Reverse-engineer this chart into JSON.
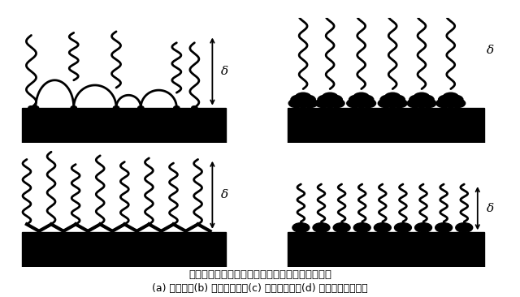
{
  "title_main": "不同分子结构的聚合物在陶瓷粉体表面的吸阻构型",
  "caption": "(a) 同聚物；(b) 二段共聚物；(c) 梳状共聚物；(d) 功能性短链分散剂",
  "label_a": "(a)",
  "label_b": "(b)",
  "label_c": "(c)",
  "label_d": "(d)",
  "delta": "δ",
  "bg_color": "#ffffff"
}
